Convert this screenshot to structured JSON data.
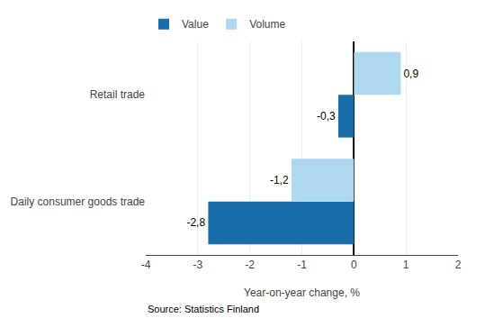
{
  "chart_data": {
    "type": "bar",
    "orientation": "horizontal",
    "categories": [
      "Daily consumer goods trade",
      "Retail trade"
    ],
    "series": [
      {
        "name": "Value",
        "color": "#1a6eab",
        "values": [
          -2.8,
          -0.3
        ],
        "value_labels": [
          "-2,8",
          "-0,3"
        ]
      },
      {
        "name": "Volume",
        "color": "#add8f0",
        "values": [
          -1.2,
          0.9
        ],
        "value_labels": [
          "-1,2",
          "0,9"
        ]
      }
    ],
    "xlabel": "Year-on-year change, %",
    "xlim": [
      -4,
      2
    ],
    "xticks": [
      -4,
      -3,
      -2,
      -1,
      0,
      1,
      2
    ],
    "grid": true,
    "data_labels": true,
    "legend": "upper left",
    "annotations": [
      "Source: Statistics Finland"
    ]
  }
}
